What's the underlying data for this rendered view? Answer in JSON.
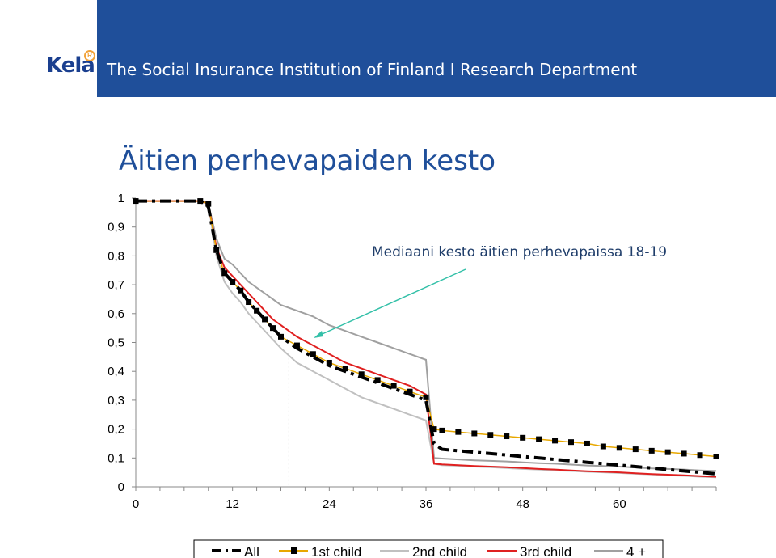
{
  "header": {
    "logo_text": "Kela",
    "logo_mark": "R",
    "institution": "The Social Insurance Institution of Finland I Research Department"
  },
  "page_title": "Äitien perhevapaiden kesto",
  "annotation": "Mediaani kesto äitien perhevapaissa 18-19",
  "colors": {
    "brand_blue": "#1f4f9a",
    "title_blue": "#1f4f9a",
    "arrow": "#33c0a8"
  },
  "chart_data": {
    "type": "line",
    "title": "",
    "xlabel": "",
    "ylabel": "",
    "xlim": [
      0,
      72
    ],
    "ylim": [
      0,
      1
    ],
    "x_ticks": [
      "0",
      "12",
      "24",
      "36",
      "48",
      "60"
    ],
    "x_tick_values": [
      0,
      12,
      24,
      36,
      48,
      60
    ],
    "y_ticks": [
      "0",
      "0,1",
      "0,2",
      "0,3",
      "0,4",
      "0,5",
      "0,6",
      "0,7",
      "0,8",
      "0,9",
      "1"
    ],
    "y_tick_values": [
      0,
      0.1,
      0.2,
      0.3,
      0.4,
      0.5,
      0.6,
      0.7,
      0.8,
      0.9,
      1.0
    ],
    "median_marker_x": 19,
    "series": [
      {
        "name": "All",
        "color": "#000000",
        "style": "dashdot",
        "x": [
          0,
          8,
          9,
          10,
          11,
          12,
          13,
          14,
          15,
          16,
          17,
          18,
          20,
          22,
          24,
          26,
          28,
          30,
          32,
          34,
          36,
          37,
          38,
          40,
          42,
          44,
          46,
          48,
          50,
          52,
          54,
          56,
          58,
          60,
          62,
          64,
          66,
          68,
          70,
          72
        ],
        "y": [
          0.99,
          0.99,
          0.97,
          0.82,
          0.74,
          0.71,
          0.68,
          0.64,
          0.61,
          0.58,
          0.55,
          0.52,
          0.48,
          0.45,
          0.42,
          0.4,
          0.38,
          0.36,
          0.34,
          0.32,
          0.3,
          0.15,
          0.13,
          0.125,
          0.12,
          0.115,
          0.11,
          0.105,
          0.1,
          0.095,
          0.09,
          0.085,
          0.08,
          0.075,
          0.07,
          0.065,
          0.06,
          0.055,
          0.05,
          0.045
        ]
      },
      {
        "name": "1st child",
        "color": "#e8a800",
        "style": "solid-square",
        "x": [
          0,
          8,
          9,
          10,
          11,
          12,
          13,
          14,
          15,
          16,
          17,
          18,
          20,
          22,
          24,
          26,
          28,
          30,
          32,
          34,
          36,
          37,
          38,
          40,
          42,
          44,
          46,
          48,
          50,
          52,
          54,
          56,
          58,
          60,
          62,
          64,
          66,
          68,
          70,
          72
        ],
        "y": [
          0.99,
          0.99,
          0.98,
          0.82,
          0.74,
          0.71,
          0.68,
          0.64,
          0.61,
          0.58,
          0.55,
          0.52,
          0.49,
          0.46,
          0.43,
          0.41,
          0.39,
          0.37,
          0.35,
          0.33,
          0.31,
          0.2,
          0.195,
          0.19,
          0.185,
          0.18,
          0.175,
          0.17,
          0.165,
          0.16,
          0.155,
          0.15,
          0.14,
          0.135,
          0.13,
          0.125,
          0.12,
          0.115,
          0.11,
          0.105
        ]
      },
      {
        "name": "2nd child",
        "color": "#c0c0c0",
        "style": "solid",
        "x": [
          0,
          8,
          9,
          10,
          11,
          12,
          13,
          14,
          15,
          16,
          17,
          18,
          20,
          22,
          24,
          26,
          28,
          30,
          32,
          34,
          36,
          37,
          38,
          40,
          42,
          44,
          46,
          48,
          50,
          52,
          54,
          56,
          58,
          60,
          62,
          64,
          66,
          68,
          70,
          72
        ],
        "y": [
          0.99,
          0.99,
          0.98,
          0.8,
          0.71,
          0.67,
          0.64,
          0.6,
          0.57,
          0.54,
          0.51,
          0.48,
          0.43,
          0.4,
          0.37,
          0.34,
          0.31,
          0.29,
          0.27,
          0.25,
          0.23,
          0.08,
          0.075,
          0.073,
          0.07,
          0.068,
          0.065,
          0.062,
          0.06,
          0.057,
          0.055,
          0.052,
          0.05,
          0.048,
          0.045,
          0.043,
          0.04,
          0.038,
          0.035,
          0.033
        ]
      },
      {
        "name": "3rd child",
        "color": "#e02020",
        "style": "solid",
        "x": [
          0,
          8,
          9,
          10,
          11,
          12,
          13,
          14,
          15,
          16,
          17,
          18,
          20,
          22,
          24,
          26,
          28,
          30,
          32,
          34,
          36,
          37,
          38,
          40,
          42,
          44,
          46,
          48,
          50,
          52,
          54,
          56,
          58,
          60,
          62,
          64,
          66,
          68,
          70,
          72
        ],
        "y": [
          0.99,
          0.99,
          0.98,
          0.83,
          0.76,
          0.73,
          0.7,
          0.67,
          0.64,
          0.61,
          0.58,
          0.56,
          0.52,
          0.49,
          0.46,
          0.43,
          0.41,
          0.39,
          0.37,
          0.35,
          0.32,
          0.08,
          0.078,
          0.075,
          0.072,
          0.07,
          0.068,
          0.065,
          0.062,
          0.06,
          0.057,
          0.054,
          0.052,
          0.05,
          0.047,
          0.044,
          0.042,
          0.04,
          0.037,
          0.035
        ]
      },
      {
        "name": "4 +",
        "color": "#a0a0a0",
        "style": "solid",
        "x": [
          0,
          8,
          9,
          10,
          11,
          12,
          13,
          14,
          15,
          16,
          17,
          18,
          20,
          22,
          24,
          26,
          28,
          30,
          32,
          34,
          36,
          37,
          38,
          40,
          42,
          44,
          46,
          48,
          50,
          52,
          54,
          56,
          58,
          60,
          62,
          64,
          66,
          68,
          70,
          72
        ],
        "y": [
          0.99,
          0.99,
          0.98,
          0.86,
          0.79,
          0.77,
          0.74,
          0.71,
          0.69,
          0.67,
          0.65,
          0.63,
          0.61,
          0.59,
          0.56,
          0.54,
          0.52,
          0.5,
          0.48,
          0.46,
          0.44,
          0.1,
          0.098,
          0.095,
          0.092,
          0.09,
          0.088,
          0.085,
          0.082,
          0.08,
          0.077,
          0.074,
          0.072,
          0.07,
          0.067,
          0.064,
          0.062,
          0.06,
          0.057,
          0.055
        ]
      }
    ],
    "legend": [
      "All",
      "1st child",
      "2nd child",
      "3rd child",
      "4 +"
    ],
    "legend_position": "bottom"
  }
}
